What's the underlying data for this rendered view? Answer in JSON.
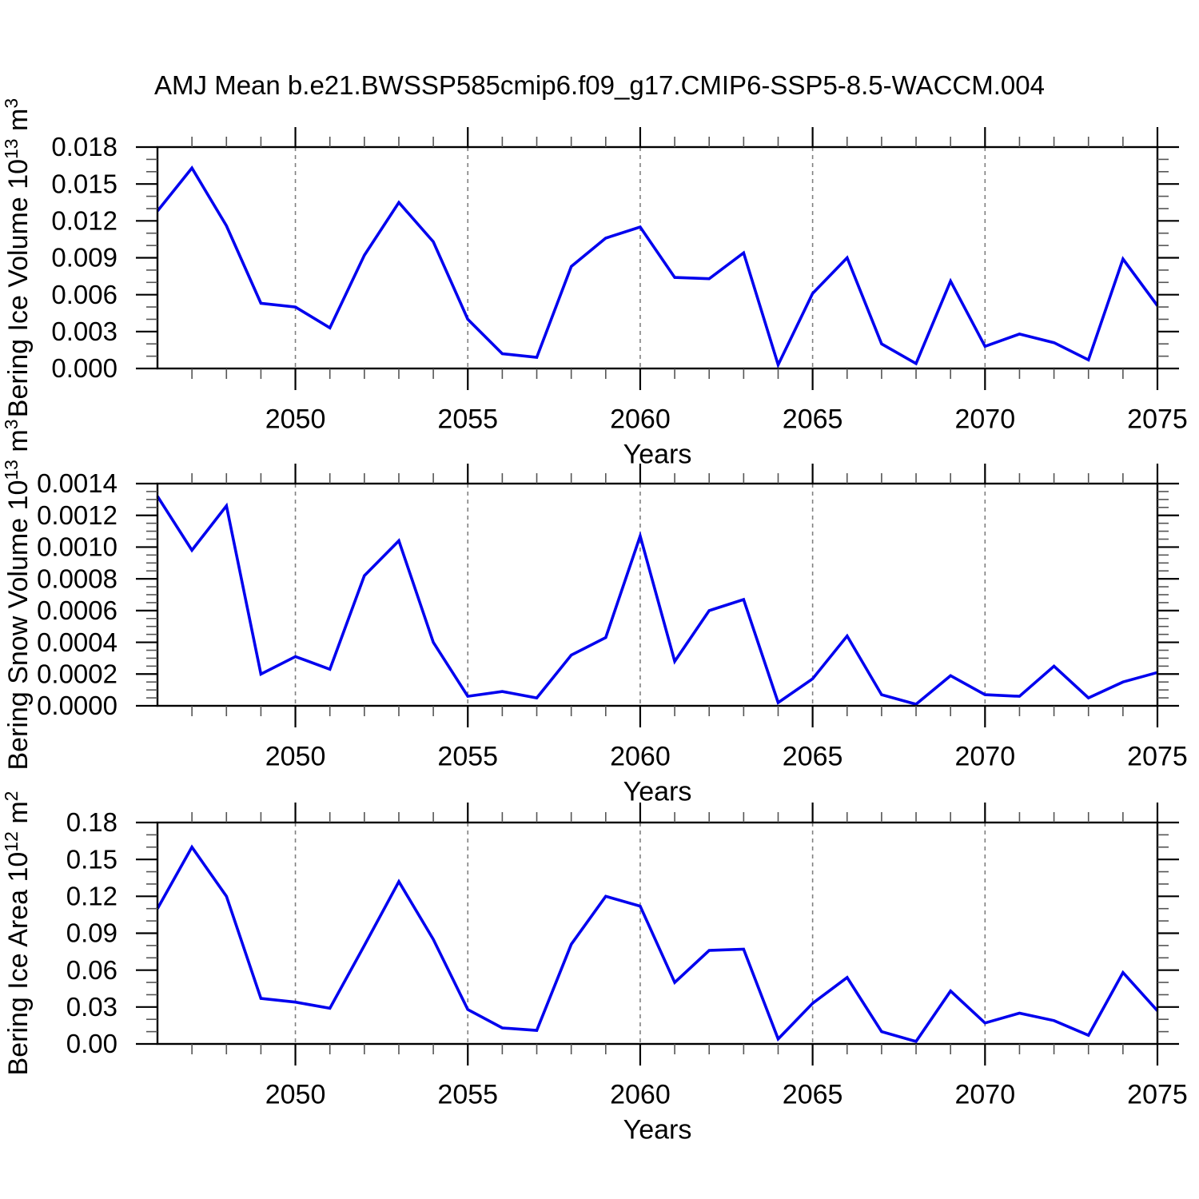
{
  "title": "AMJ Mean b.e21.BWSSP585cmip6.f09_g17.CMIP6-SSP5-8.5-WACCM.004",
  "style": {
    "background": "#ffffff",
    "line_color": "#0000EE",
    "frame_color": "#000000",
    "major_tick_color": "#000000",
    "minor_tick_color": "#555555",
    "grid_color": "#808080",
    "text_color": "#000000"
  },
  "chart_data": [
    {
      "type": "line",
      "name": "bering-ice-volume",
      "ylabel": "Bering Ice Volume 10^13 m^3",
      "ylabel_parts": [
        {
          "t": "Bering Ice Volume 10"
        },
        {
          "t": "13",
          "sup": true
        },
        {
          "t": " m"
        },
        {
          "t": "3",
          "sup": true
        }
      ],
      "xlabel": "Years",
      "xlim": [
        2046,
        2075
      ],
      "ylim": [
        0,
        0.018
      ],
      "ytick_step": 0.003,
      "y_minor_divisions": 3,
      "ytick_labels": [
        "0.000",
        "0.003",
        "0.006",
        "0.009",
        "0.012",
        "0.015",
        "0.018"
      ],
      "xticks": [
        2050,
        2055,
        2060,
        2065,
        2070,
        2075
      ],
      "xtick_labels": [
        "2050",
        "2055",
        "2060",
        "2065",
        "2070",
        "2075"
      ],
      "grid": "vertical-dashed-at-5yr",
      "legend": "none",
      "x": [
        2046,
        2047,
        2048,
        2049,
        2050,
        2051,
        2052,
        2053,
        2054,
        2055,
        2056,
        2057,
        2058,
        2059,
        2060,
        2061,
        2062,
        2063,
        2064,
        2065,
        2066,
        2067,
        2068,
        2069,
        2070,
        2071,
        2072,
        2073,
        2074,
        2075
      ],
      "values": [
        0.0128,
        0.0163,
        0.0116,
        0.0053,
        0.005,
        0.0033,
        0.0092,
        0.0135,
        0.0103,
        0.004,
        0.0012,
        0.0009,
        0.0083,
        0.0106,
        0.0115,
        0.0074,
        0.0073,
        0.0094,
        0.0003,
        0.0061,
        0.009,
        0.002,
        0.0004,
        0.0071,
        0.0018,
        0.0028,
        0.0021,
        0.0007,
        0.0089,
        0.0051
      ]
    },
    {
      "type": "line",
      "name": "bering-snow-volume",
      "ylabel": "Bering Snow Volume 10^13 m^3",
      "ylabel_parts": [
        {
          "t": "Bering Snow Volume 10"
        },
        {
          "t": "13",
          "sup": true
        },
        {
          "t": " m"
        },
        {
          "t": "3",
          "sup": true
        }
      ],
      "xlabel": "Years",
      "xlim": [
        2046,
        2075
      ],
      "ylim": [
        0,
        0.0014
      ],
      "ytick_step": 0.0002,
      "y_minor_divisions": 4,
      "ytick_labels": [
        "0.0000",
        "0.0002",
        "0.0004",
        "0.0006",
        "0.0008",
        "0.0010",
        "0.0012",
        "0.0014"
      ],
      "xticks": [
        2050,
        2055,
        2060,
        2065,
        2070,
        2075
      ],
      "xtick_labels": [
        "2050",
        "2055",
        "2060",
        "2065",
        "2070",
        "2075"
      ],
      "grid": "vertical-dashed-at-5yr",
      "legend": "none",
      "x": [
        2046,
        2047,
        2048,
        2049,
        2050,
        2051,
        2052,
        2053,
        2054,
        2055,
        2056,
        2057,
        2058,
        2059,
        2060,
        2061,
        2062,
        2063,
        2064,
        2065,
        2066,
        2067,
        2068,
        2069,
        2070,
        2071,
        2072,
        2073,
        2074,
        2075
      ],
      "values": [
        0.00132,
        0.00098,
        0.00126,
        0.0002,
        0.00031,
        0.00023,
        0.00082,
        0.00104,
        0.0004,
        6e-05,
        9e-05,
        5e-05,
        0.00032,
        0.00043,
        0.00107,
        0.00028,
        0.0006,
        0.00067,
        2e-05,
        0.00017,
        0.00044,
        7e-05,
        1e-05,
        0.00019,
        7e-05,
        6e-05,
        0.00025,
        5e-05,
        0.00015,
        0.00021
      ]
    },
    {
      "type": "line",
      "name": "bering-ice-area",
      "ylabel": "Bering Ice Area 10^12 m^2",
      "ylabel_parts": [
        {
          "t": "Bering Ice Area 10"
        },
        {
          "t": "12",
          "sup": true
        },
        {
          "t": " m"
        },
        {
          "t": "2",
          "sup": true
        }
      ],
      "xlabel": "Years",
      "xlim": [
        2046,
        2075
      ],
      "ylim": [
        0,
        0.18
      ],
      "ytick_step": 0.03,
      "y_minor_divisions": 3,
      "ytick_labels": [
        "0.00",
        "0.03",
        "0.06",
        "0.09",
        "0.12",
        "0.15",
        "0.18"
      ],
      "xticks": [
        2050,
        2055,
        2060,
        2065,
        2070,
        2075
      ],
      "xtick_labels": [
        "2050",
        "2055",
        "2060",
        "2065",
        "2070",
        "2075"
      ],
      "grid": "vertical-dashed-at-5yr",
      "legend": "none",
      "x": [
        2046,
        2047,
        2048,
        2049,
        2050,
        2051,
        2052,
        2053,
        2054,
        2055,
        2056,
        2057,
        2058,
        2059,
        2060,
        2061,
        2062,
        2063,
        2064,
        2065,
        2066,
        2067,
        2068,
        2069,
        2070,
        2071,
        2072,
        2073,
        2074,
        2075
      ],
      "values": [
        0.11,
        0.16,
        0.12,
        0.037,
        0.034,
        0.029,
        0.08,
        0.132,
        0.085,
        0.028,
        0.013,
        0.011,
        0.081,
        0.12,
        0.112,
        0.05,
        0.076,
        0.077,
        0.004,
        0.033,
        0.054,
        0.01,
        0.002,
        0.043,
        0.017,
        0.025,
        0.019,
        0.007,
        0.058,
        0.027
      ]
    }
  ]
}
